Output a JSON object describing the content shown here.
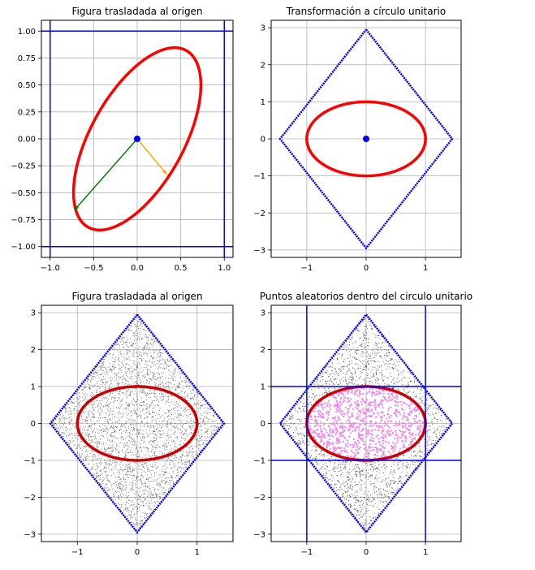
{
  "chart_data": [
    {
      "type": "scatter",
      "title": "Figura trasladada al origen",
      "xlim": [
        -1.1,
        1.1
      ],
      "ylim": [
        -1.1,
        1.1
      ],
      "xticks": [
        -1.0,
        -0.5,
        0.0,
        0.5,
        1.0
      ],
      "xtick_labels": [
        "−1.0",
        "−0.5",
        "0.0",
        "0.5",
        "1.0"
      ],
      "yticks": [
        1.0,
        0.75,
        0.5,
        0.25,
        0.0,
        -0.25,
        -0.5,
        -0.75,
        -1.0
      ],
      "ytick_labels": [
        "1.00",
        "0.75",
        "0.50",
        "0.25",
        "0.00",
        "−0.25",
        "−0.50",
        "−0.75",
        "−1.00"
      ],
      "grid": true,
      "ellipse": {
        "cx": 0,
        "cy": 0,
        "a": 1.0,
        "b": 0.5,
        "angle_deg": 52,
        "color": "#ff0000"
      },
      "center_point": {
        "x": 0,
        "y": 0,
        "color": "#0000ff"
      },
      "arrows": [
        {
          "x1": 0,
          "y1": 0,
          "x2": -0.72,
          "y2": -0.66,
          "color": "#008000"
        },
        {
          "x1": 0,
          "y1": 0,
          "x2": 0.34,
          "y2": -0.33,
          "color": "#ffa500"
        }
      ],
      "vlines": [
        -1.0,
        1.0
      ],
      "hlines": [
        1.0,
        -1.0
      ],
      "line_color": "#0000ff"
    },
    {
      "type": "scatter",
      "title": "Transformación a círculo unitario",
      "xlim": [
        -1.6,
        1.6
      ],
      "ylim": [
        -3.2,
        3.2
      ],
      "xticks": [
        -1,
        0,
        1
      ],
      "xtick_labels": [
        "−1",
        "0",
        "1"
      ],
      "yticks": [
        3,
        2,
        1,
        0,
        -1,
        -2,
        -3
      ],
      "ytick_labels": [
        "3",
        "2",
        "1",
        "0",
        "−1",
        "−2",
        "−3"
      ],
      "grid": true,
      "diamond": {
        "half_width": 1.45,
        "half_height": 2.95,
        "color": "#0000ff"
      },
      "ellipse": {
        "cx": 0,
        "cy": 0,
        "a": 1.0,
        "b": 1.0,
        "angle_deg": 0,
        "color": "#ff0000"
      },
      "center_point": {
        "x": 0,
        "y": 0,
        "color": "#0000ff"
      }
    },
    {
      "type": "scatter",
      "title": "Figura trasladada al origen",
      "xlim": [
        -1.6,
        1.6
      ],
      "ylim": [
        -3.2,
        3.2
      ],
      "xticks": [
        -1,
        0,
        1
      ],
      "xtick_labels": [
        "−1",
        "0",
        "1"
      ],
      "yticks": [
        3,
        2,
        1,
        0,
        -1,
        -2,
        -3
      ],
      "ytick_labels": [
        "3",
        "2",
        "1",
        "0",
        "−1",
        "−2",
        "−3"
      ],
      "grid": true,
      "diamond": {
        "half_width": 1.45,
        "half_height": 2.95,
        "color": "#0000ff"
      },
      "random_points": {
        "count": 3500,
        "color": "#222222",
        "region": "diamond"
      },
      "ellipse": {
        "cx": 0,
        "cy": 0,
        "a": 1.0,
        "b": 1.0,
        "angle_deg": 0,
        "color": "#cc0000"
      }
    },
    {
      "type": "scatter",
      "title": "Puntos aleatorios dentro del circulo unitario",
      "xlim": [
        -1.6,
        1.6
      ],
      "ylim": [
        -3.2,
        3.2
      ],
      "xticks": [
        -1,
        0,
        1
      ],
      "xtick_labels": [
        "−1",
        "0",
        "1"
      ],
      "yticks": [
        3,
        2,
        1,
        0,
        -1,
        -2,
        -3
      ],
      "ytick_labels": [
        "3",
        "2",
        "1",
        "0",
        "−1",
        "−2",
        "−3"
      ],
      "grid": true,
      "diamond": {
        "half_width": 1.45,
        "half_height": 2.95,
        "color": "#0000ff"
      },
      "random_points": {
        "count": 3500,
        "color": "#222222",
        "region": "diamond"
      },
      "inside_points": {
        "color": "#ee82ee"
      },
      "ellipse": {
        "cx": 0,
        "cy": 0,
        "a": 1.0,
        "b": 1.0,
        "angle_deg": 0,
        "color": "#cc0000"
      },
      "vlines": [
        -1,
        1
      ],
      "hlines": [
        1,
        -1
      ],
      "line_color": "#0000ff"
    }
  ]
}
